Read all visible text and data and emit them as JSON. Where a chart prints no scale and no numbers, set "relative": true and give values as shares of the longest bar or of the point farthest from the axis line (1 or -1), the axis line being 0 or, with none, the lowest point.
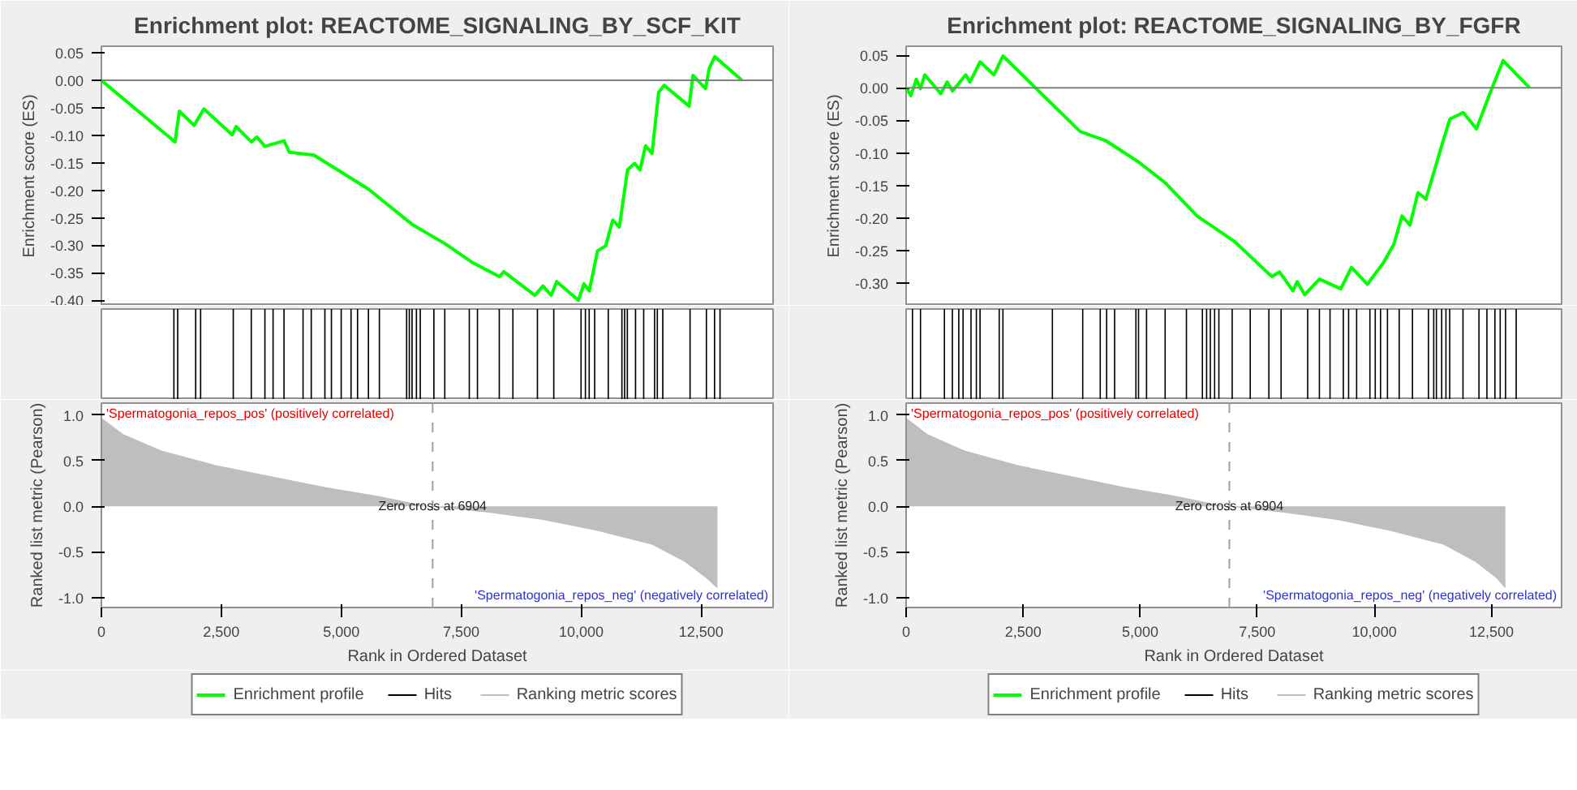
{
  "chart_data": [
    {
      "type": "line",
      "title": "Enrichment plot: REACTOME_SIGNALING_BY_SCF_KIT",
      "ylabel": "Enrichment score (ES)",
      "xlim": [
        0,
        14000
      ],
      "ylim": [
        -0.41,
        0.062
      ],
      "yticks": [
        {
          "value": 0.05,
          "label": "0.05"
        },
        {
          "value": 0,
          "label": "0.00"
        },
        {
          "value": -0.05,
          "label": "-0.05"
        },
        {
          "value": -0.1,
          "label": "-0.10"
        },
        {
          "value": -0.15,
          "label": "-0.15"
        },
        {
          "value": -0.2,
          "label": "-0.20"
        },
        {
          "value": -0.25,
          "label": "-0.25"
        },
        {
          "value": -0.3,
          "label": "-0.30"
        },
        {
          "value": -0.35,
          "label": "-0.35"
        },
        {
          "value": -0.4,
          "label": "-0.40"
        }
      ],
      "tick_labels": "y",
      "grid": false,
      "ref_lines": [
        {
          "axis": "y",
          "value": 0,
          "label": null,
          "color": "#808080"
        }
      ],
      "x": [
        0,
        1534,
        1625,
        1932,
        2136,
        2727,
        2807,
        3125,
        3239,
        3409,
        3807,
        3920,
        4432,
        5568,
        6477,
        7159,
        7727,
        8295,
        8386,
        9034,
        9204,
        9375,
        9489,
        9943,
        10057,
        10170,
        10341,
        10511,
        10659,
        10795,
        10966,
        11114,
        11227,
        11341,
        11477,
        11614,
        11727,
        12250,
        12329,
        12591,
        12670,
        12784,
        13352
      ],
      "series": [
        {
          "name": "Enrichment profile",
          "color": "#00ff00",
          "values": [
            0,
            -0.112,
            -0.056,
            -0.082,
            -0.052,
            -0.099,
            -0.084,
            -0.112,
            -0.103,
            -0.12,
            -0.11,
            -0.131,
            -0.136,
            -0.198,
            -0.262,
            -0.297,
            -0.331,
            -0.357,
            -0.348,
            -0.391,
            -0.374,
            -0.391,
            -0.366,
            -0.4,
            -0.37,
            -0.383,
            -0.31,
            -0.301,
            -0.254,
            -0.267,
            -0.163,
            -0.151,
            -0.163,
            -0.119,
            -0.133,
            -0.022,
            -0.009,
            -0.047,
            0.009,
            -0.015,
            0.022,
            0.043,
            0
          ]
        }
      ]
    },
    {
      "type": "bar",
      "relative": true,
      "tick_labels": false,
      "xlim": [
        0,
        14000
      ],
      "x": [
        1511,
        1590,
        1965,
        2068,
        2749,
        3124,
        3408,
        3578,
        3806,
        4203,
        4374,
        4658,
        4794,
        4998,
        5203,
        5339,
        5566,
        5794,
        6362,
        6418,
        6475,
        6566,
        6646,
        6930,
        7157,
        7668,
        7838,
        8293,
        8577,
        9088,
        9429,
        9997,
        10088,
        10167,
        10281,
        10565,
        10849,
        10906,
        10962,
        11133,
        11303,
        11530,
        11587,
        11701,
        12269,
        12610,
        12780,
        12894
      ],
      "series": [
        {
          "name": "Hits",
          "color": "#000000",
          "values": [
            1,
            1,
            1,
            1,
            1,
            1,
            1,
            1,
            1,
            1,
            1,
            1,
            1,
            1,
            1,
            1,
            1,
            1,
            1,
            1,
            1,
            1,
            1,
            1,
            1,
            1,
            1,
            1,
            1,
            1,
            1,
            1,
            1,
            1,
            1,
            1,
            1,
            1,
            1,
            1,
            1,
            1,
            1,
            1,
            1,
            1,
            1,
            1
          ]
        }
      ]
    },
    {
      "type": "area",
      "xlabel": "Rank in Ordered Dataset",
      "ylabel": "Ranked list metric (Pearson)",
      "xlim": [
        0,
        14000
      ],
      "ylim": [
        -1.11,
        1.13
      ],
      "xticks": [
        0,
        {
          "value": 2500,
          "label": "2,500"
        },
        {
          "value": 5000,
          "label": "5,000"
        },
        {
          "value": 7500,
          "label": "7,500"
        },
        {
          "value": 10000,
          "label": "10,000"
        },
        {
          "value": 12500,
          "label": "12,500"
        }
      ],
      "yticks": [
        {
          "value": 1,
          "label": "1.0"
        },
        {
          "value": 0.5,
          "label": "0.5"
        },
        {
          "value": 0,
          "label": "0.0"
        },
        {
          "value": -0.5,
          "label": "-0.5"
        },
        {
          "value": -1,
          "label": "-1.0"
        }
      ],
      "grid": false,
      "legend": "bottom",
      "ref_lines": [
        {
          "axis": "x",
          "value": 6904,
          "label": null,
          "color": "#a0a0a0",
          "line_style": "dashed"
        }
      ],
      "annotations": [
        "'Spermatogonia_repos_pos' (positively correlated)",
        {
          "text": "Zero cross at 6904",
          "x": 6904,
          "y": 0
        },
        "'Spermatogonia_repos_neg' (negatively correlated)"
      ],
      "x": [
        0,
        455,
        1250,
        2386,
        3522,
        4658,
        5794,
        6816,
        8066,
        9204,
        10341,
        11477,
        12159,
        12610,
        12840
      ],
      "series": [
        {
          "name": "Ranking metric scores",
          "color": "#bebebe",
          "values": [
            0.97,
            0.79,
            0.61,
            0.45,
            0.33,
            0.21,
            0.11,
            0,
            -0.07,
            -0.15,
            -0.27,
            -0.42,
            -0.61,
            -0.79,
            -0.9
          ]
        }
      ]
    },
    {
      "type": "line",
      "title": "Enrichment plot: REACTOME_SIGNALING_BY_FGFR",
      "ylabel": "Enrichment score (ES)",
      "xlim": [
        0,
        14000
      ],
      "ylim": [
        -0.335,
        0.064
      ],
      "yticks": [
        {
          "value": 0.05,
          "label": "0.05"
        },
        {
          "value": 0,
          "label": "0.00"
        },
        {
          "value": -0.05,
          "label": "-0.05"
        },
        {
          "value": -0.1,
          "label": "-0.10"
        },
        {
          "value": -0.15,
          "label": "-0.15"
        },
        {
          "value": -0.2,
          "label": "-0.20"
        },
        {
          "value": -0.25,
          "label": "-0.25"
        },
        {
          "value": -0.3,
          "label": "-0.30"
        }
      ],
      "tick_labels": "y",
      "grid": false,
      "ref_lines": [
        {
          "axis": "y",
          "value": 0,
          "label": null,
          "color": "#808080"
        }
      ],
      "x": [
        0,
        102,
        216,
        307,
        398,
        739,
        875,
        989,
        1273,
        1364,
        1580,
        1875,
        2068,
        3091,
        3716,
        4261,
        4966,
        5534,
        6216,
        7011,
        7807,
        7977,
        8261,
        8352,
        8511,
        8830,
        9284,
        9511,
        9852,
        10193,
        10420,
        10591,
        10761,
        10932,
        11102,
        11443,
        11614,
        11898,
        12182,
        12466,
        12750,
        13318
      ],
      "series": [
        {
          "name": "Enrichment profile",
          "color": "#00ff00",
          "values": [
            0,
            -0.012,
            0.013,
            -0.001,
            0.02,
            -0.009,
            0.009,
            -0.005,
            0.02,
            0.009,
            0.04,
            0.02,
            0.049,
            -0.023,
            -0.067,
            -0.081,
            -0.114,
            -0.146,
            -0.197,
            -0.236,
            -0.29,
            -0.283,
            -0.312,
            -0.298,
            -0.318,
            -0.294,
            -0.309,
            -0.276,
            -0.302,
            -0.269,
            -0.24,
            -0.197,
            -0.211,
            -0.161,
            -0.171,
            -0.088,
            -0.048,
            -0.038,
            -0.063,
            -0.009,
            0.042,
            0
          ]
        }
      ]
    },
    {
      "type": "bar",
      "relative": true,
      "tick_labels": false,
      "xlim": [
        0,
        14000
      ],
      "x": [
        136,
        307,
        818,
        988,
        1125,
        1216,
        1386,
        1500,
        1579,
        1988,
        2068,
        3124,
        3772,
        4146,
        4283,
        4453,
        4908,
        4964,
        5135,
        5532,
        5987,
        6328,
        6418,
        6498,
        6589,
        6680,
        6964,
        7350,
        7748,
        8009,
        8577,
        8827,
        9054,
        9338,
        9451,
        9622,
        9906,
        10020,
        10133,
        10281,
        10531,
        10815,
        11156,
        11269,
        11326,
        11439,
        11530,
        11610,
        11894,
        12235,
        12405,
        12576,
        12689,
        12803,
        13030
      ],
      "series": [
        {
          "name": "Hits",
          "color": "#000000",
          "values": [
            1,
            1,
            1,
            1,
            1,
            1,
            1,
            1,
            1,
            1,
            1,
            1,
            1,
            1,
            1,
            1,
            1,
            1,
            1,
            1,
            1,
            1,
            1,
            1,
            1,
            1,
            1,
            1,
            1,
            1,
            1,
            1,
            1,
            1,
            1,
            1,
            1,
            1,
            1,
            1,
            1,
            1,
            1,
            1,
            1,
            1,
            1,
            1,
            1,
            1,
            1,
            1,
            1,
            1,
            1
          ]
        }
      ]
    },
    {
      "type": "area",
      "xlabel": "Rank in Ordered Dataset",
      "ylabel": "Ranked list metric (Pearson)",
      "xlim": [
        0,
        14000
      ],
      "ylim": [
        -1.11,
        1.13
      ],
      "xticks": [
        0,
        {
          "value": 2500,
          "label": "2,500"
        },
        {
          "value": 5000,
          "label": "5,000"
        },
        {
          "value": 7500,
          "label": "7,500"
        },
        {
          "value": 10000,
          "label": "10,000"
        },
        {
          "value": 12500,
          "label": "12,500"
        }
      ],
      "yticks": [
        {
          "value": 1,
          "label": "1.0"
        },
        {
          "value": 0.5,
          "label": "0.5"
        },
        {
          "value": 0,
          "label": "0.0"
        },
        {
          "value": -0.5,
          "label": "-0.5"
        },
        {
          "value": -1,
          "label": "-1.0"
        }
      ],
      "grid": false,
      "legend": "bottom",
      "ref_lines": [
        {
          "axis": "x",
          "value": 6904,
          "label": null,
          "color": "#a0a0a0",
          "line_style": "dashed"
        }
      ],
      "annotations": [
        "'Spermatogonia_repos_pos' (positively correlated)",
        {
          "text": "Zero cross at 6904",
          "x": 6904,
          "y": 0
        },
        "'Spermatogonia_repos_neg' (negatively correlated)"
      ],
      "x": [
        0,
        455,
        1250,
        2386,
        3522,
        4658,
        5794,
        6816,
        8066,
        9204,
        10341,
        11477,
        12159,
        12610,
        12800
      ],
      "series": [
        {
          "name": "Ranking metric scores",
          "color": "#bebebe",
          "values": [
            0.97,
            0.79,
            0.61,
            0.45,
            0.33,
            0.21,
            0.11,
            0,
            -0.07,
            -0.15,
            -0.27,
            -0.42,
            -0.61,
            -0.79,
            -0.9
          ]
        }
      ]
    }
  ]
}
